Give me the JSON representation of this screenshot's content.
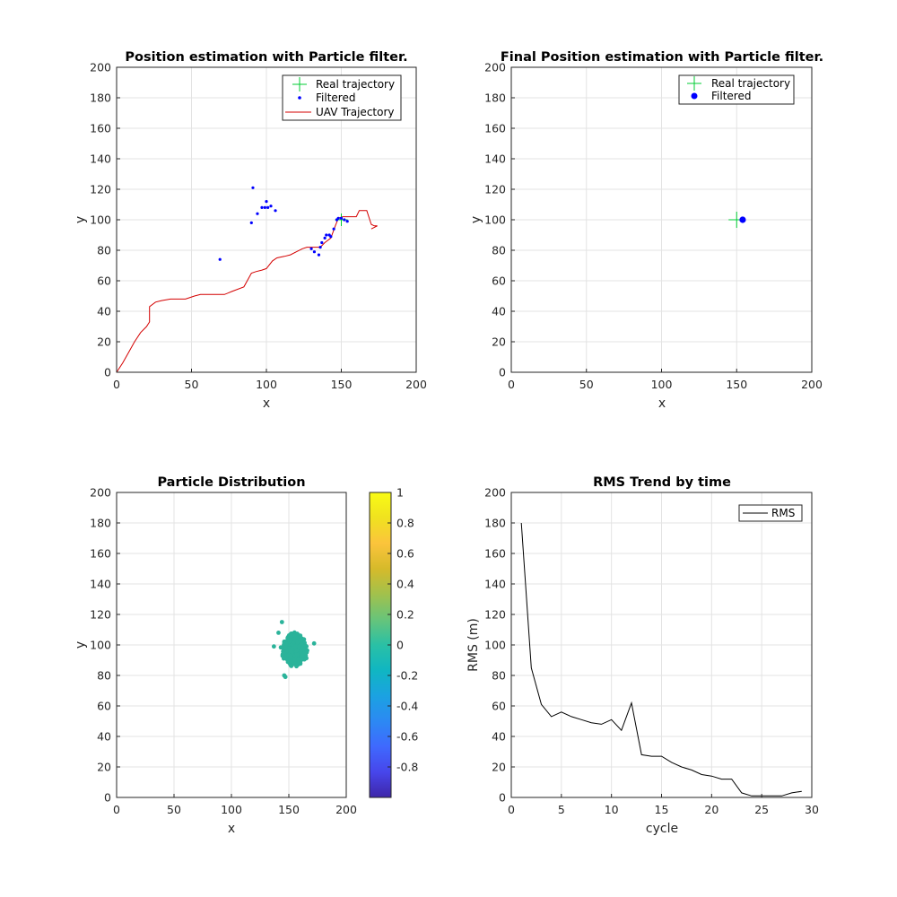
{
  "colors": {
    "real": "#00cc33",
    "filtered": "#0000ff",
    "uav": "#d40000",
    "rms": "#000000",
    "particles": "#2bb39a"
  },
  "chart_data": [
    {
      "id": "position",
      "type": "scatter",
      "title": "Position estimation with Particle filter.",
      "xlabel": "x",
      "ylabel": "y",
      "xlim": [
        0,
        200
      ],
      "ylim": [
        0,
        200
      ],
      "xticks": [
        0,
        50,
        100,
        150,
        200
      ],
      "yticks": [
        0,
        20,
        40,
        60,
        80,
        100,
        120,
        140,
        160,
        180,
        200
      ],
      "grid": true,
      "legend_position": "top-right",
      "legend": [
        "Real trajectory",
        "Filtered",
        "UAV Trajectory"
      ],
      "real_trajectory": [
        [
          150,
          100
        ]
      ],
      "filtered": [
        [
          69,
          74
        ],
        [
          90,
          98
        ],
        [
          91,
          121
        ],
        [
          94,
          104
        ],
        [
          97,
          108
        ],
        [
          99,
          108
        ],
        [
          100,
          112
        ],
        [
          101,
          108
        ],
        [
          103,
          109
        ],
        [
          106,
          106
        ],
        [
          130,
          81
        ],
        [
          132,
          79
        ],
        [
          135,
          77
        ],
        [
          136,
          82
        ],
        [
          137,
          85
        ],
        [
          139,
          88
        ],
        [
          140,
          90
        ],
        [
          142,
          90
        ],
        [
          143,
          89
        ],
        [
          145,
          94
        ],
        [
          147,
          100
        ],
        [
          148,
          101
        ],
        [
          150,
          101
        ],
        [
          152,
          100
        ],
        [
          154,
          99
        ]
      ],
      "uav_trajectory": [
        [
          0,
          0
        ],
        [
          4,
          6
        ],
        [
          8,
          13
        ],
        [
          12,
          20
        ],
        [
          16,
          26
        ],
        [
          20,
          30
        ],
        [
          22,
          33
        ],
        [
          22,
          43
        ],
        [
          26,
          46
        ],
        [
          30,
          47
        ],
        [
          36,
          48
        ],
        [
          46,
          48
        ],
        [
          52,
          50
        ],
        [
          56,
          51
        ],
        [
          64,
          51
        ],
        [
          72,
          51
        ],
        [
          77,
          53
        ],
        [
          85,
          56
        ],
        [
          90,
          65
        ],
        [
          93,
          66
        ],
        [
          97,
          67
        ],
        [
          100,
          68
        ],
        [
          104,
          73
        ],
        [
          107,
          75
        ],
        [
          112,
          76
        ],
        [
          116,
          77
        ],
        [
          120,
          79
        ],
        [
          124,
          81
        ],
        [
          127,
          82
        ],
        [
          132,
          82
        ],
        [
          136,
          82
        ],
        [
          139,
          85
        ],
        [
          143,
          88
        ],
        [
          146,
          96
        ],
        [
          148,
          101
        ],
        [
          151,
          102
        ],
        [
          156,
          102
        ],
        [
          160,
          102
        ],
        [
          162,
          106
        ],
        [
          167,
          106
        ],
        [
          169,
          100
        ],
        [
          170,
          97
        ],
        [
          172,
          96
        ],
        [
          174,
          96
        ],
        [
          170,
          94
        ]
      ]
    },
    {
      "id": "final",
      "type": "scatter",
      "title": "Final Position estimation with Particle filter.",
      "xlabel": "x",
      "ylabel": "y",
      "xlim": [
        0,
        200
      ],
      "ylim": [
        0,
        200
      ],
      "xticks": [
        0,
        50,
        100,
        150,
        200
      ],
      "yticks": [
        0,
        20,
        40,
        60,
        80,
        100,
        120,
        140,
        160,
        180,
        200
      ],
      "grid": true,
      "legend_position": "top-right",
      "legend": [
        "Real trajectory",
        "Filtered"
      ],
      "real_trajectory": [
        [
          150,
          100
        ]
      ],
      "filtered": [
        [
          154,
          100
        ]
      ]
    },
    {
      "id": "particles",
      "type": "scatter",
      "title": "Particle Distribution",
      "xlabel": "x",
      "ylabel": "y",
      "xlim": [
        0,
        200
      ],
      "ylim": [
        0,
        200
      ],
      "xticks": [
        0,
        50,
        100,
        150,
        200
      ],
      "yticks": [
        0,
        20,
        40,
        60,
        80,
        100,
        120,
        140,
        160,
        180,
        200
      ],
      "grid": true,
      "cluster_center": [
        155,
        97
      ],
      "cluster_extent": [
        [
          137,
          172
        ],
        [
          79,
          115
        ]
      ],
      "outliers": [
        [
          144,
          115
        ],
        [
          146,
          80
        ],
        [
          147,
          79
        ],
        [
          137,
          99
        ],
        [
          172,
          101
        ],
        [
          141,
          108
        ]
      ],
      "colorbar": {
        "range": [
          -1,
          1
        ],
        "ticks": [
          "1",
          "0.8",
          "0.6",
          "0.4",
          "0.2",
          "0",
          "-0.2",
          "-0.4",
          "-0.6",
          "-0.8"
        ],
        "tick_values": [
          1,
          0.8,
          0.6,
          0.4,
          0.2,
          0,
          -0.2,
          -0.4,
          -0.6,
          -0.8
        ],
        "colormap": [
          "#3e26a8",
          "#4746eb",
          "#3f69fe",
          "#2c89f3",
          "#1ba2e1",
          "#10b6c2",
          "#2ac0a5",
          "#67c47a",
          "#a2c14c",
          "#d6ba2a",
          "#fbc43c",
          "#f0e21f",
          "#f9fb15"
        ]
      }
    },
    {
      "id": "rms",
      "type": "line",
      "title": "RMS Trend by time",
      "xlabel": "cycle",
      "ylabel": "RMS (m)",
      "xlim": [
        0,
        30
      ],
      "ylim": [
        0,
        200
      ],
      "xticks": [
        0,
        5,
        10,
        15,
        20,
        25,
        30
      ],
      "yticks": [
        0,
        20,
        40,
        60,
        80,
        100,
        120,
        140,
        160,
        180,
        200
      ],
      "grid": true,
      "legend_position": "top-right",
      "legend": [
        "RMS"
      ],
      "x": [
        1,
        2,
        3,
        4,
        5,
        6,
        7,
        8,
        9,
        10,
        11,
        12,
        13,
        14,
        15,
        16,
        17,
        18,
        19,
        20,
        21,
        22,
        23,
        24,
        25,
        26,
        27,
        28,
        29
      ],
      "y": [
        180,
        85,
        61,
        53,
        56,
        53,
        51,
        49,
        48,
        51,
        44,
        62,
        28,
        27,
        27,
        23,
        20,
        18,
        15,
        14,
        12,
        12,
        3,
        1,
        1,
        1,
        1,
        3,
        4
      ]
    }
  ]
}
